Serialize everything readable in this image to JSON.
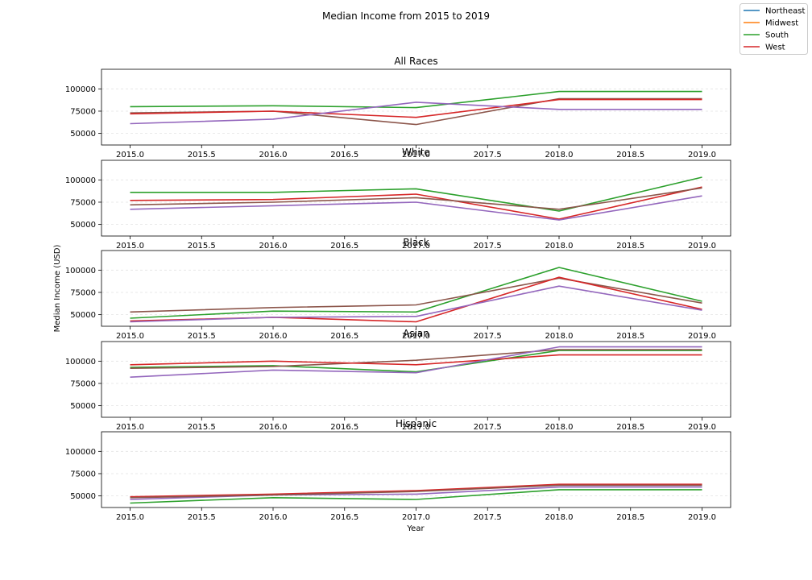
{
  "figure": {
    "suptitle": "Median Income from 2015 to 2019",
    "xlabel": "Year",
    "ylabel": "Median Income (USD)"
  },
  "legend": {
    "placement": "top-right",
    "items": [
      {
        "label": "Northeast",
        "color": "#1f77b4"
      },
      {
        "label": "Midwest",
        "color": "#ff7f0e"
      },
      {
        "label": "South",
        "color": "#2ca02c"
      },
      {
        "label": "West",
        "color": "#d62728"
      }
    ]
  },
  "chart_data": [
    {
      "type": "line",
      "title": "All Races",
      "x": [
        2015,
        2016,
        2017,
        2018,
        2019
      ],
      "xlim": [
        2014.8,
        2019.2
      ],
      "xticks": [
        "2015.0",
        "2015.5",
        "2016.0",
        "2016.5",
        "2017.0",
        "2017.5",
        "2018.0",
        "2018.5",
        "2019.0"
      ],
      "ylim": [
        37000,
        122000
      ],
      "yticks": [
        "50000",
        "75000",
        "100000"
      ],
      "grid": "y-dashed",
      "series": [
        {
          "color": "#2ca02c",
          "values": [
            80000,
            81000,
            79000,
            97000,
            97000
          ]
        },
        {
          "color": "#8c564b",
          "values": [
            73000,
            75000,
            60000,
            89000,
            89000
          ]
        },
        {
          "color": "#d62728",
          "values": [
            72000,
            75000,
            68000,
            88000,
            88000
          ]
        },
        {
          "color": "#9467bd",
          "values": [
            61000,
            66000,
            85000,
            77000,
            77000
          ]
        }
      ]
    },
    {
      "type": "line",
      "title": "White",
      "x": [
        2015,
        2016,
        2017,
        2018,
        2019
      ],
      "xlim": [
        2014.8,
        2019.2
      ],
      "xticks": [
        "2015.0",
        "2015.5",
        "2016.0",
        "2016.5",
        "2017.0",
        "2017.5",
        "2018.0",
        "2018.5",
        "2019.0"
      ],
      "ylim": [
        37000,
        122000
      ],
      "yticks": [
        "50000",
        "75000",
        "100000"
      ],
      "grid": "y-dashed",
      "series": [
        {
          "color": "#2ca02c",
          "values": [
            86000,
            86000,
            90000,
            65000,
            103000
          ]
        },
        {
          "color": "#d62728",
          "values": [
            77000,
            78000,
            84000,
            56000,
            92000
          ]
        },
        {
          "color": "#8c564b",
          "values": [
            72000,
            75000,
            80000,
            67000,
            91000
          ]
        },
        {
          "color": "#9467bd",
          "values": [
            67000,
            71000,
            75000,
            55000,
            82000
          ]
        }
      ]
    },
    {
      "type": "line",
      "title": "Black",
      "x": [
        2015,
        2016,
        2017,
        2018,
        2019
      ],
      "xlim": [
        2014.8,
        2019.2
      ],
      "xticks": [
        "2015.0",
        "2015.5",
        "2016.0",
        "2016.5",
        "2017.0",
        "2017.5",
        "2018.0",
        "2018.5",
        "2019.0"
      ],
      "ylim": [
        37000,
        122000
      ],
      "yticks": [
        "50000",
        "75000",
        "100000"
      ],
      "grid": "y-dashed",
      "series": [
        {
          "color": "#2ca02c",
          "values": [
            46000,
            54000,
            53000,
            103000,
            65000
          ]
        },
        {
          "color": "#8c564b",
          "values": [
            53000,
            58000,
            61000,
            91000,
            63000
          ]
        },
        {
          "color": "#d62728",
          "values": [
            43000,
            47000,
            42000,
            92000,
            56000
          ]
        },
        {
          "color": "#9467bd",
          "values": [
            42000,
            47000,
            48000,
            82000,
            55000
          ]
        }
      ]
    },
    {
      "type": "line",
      "title": "Asian",
      "x": [
        2015,
        2016,
        2017,
        2018,
        2019
      ],
      "xlim": [
        2014.8,
        2019.2
      ],
      "xticks": [
        "2015.0",
        "2015.5",
        "2016.0",
        "2016.5",
        "2017.0",
        "2017.5",
        "2018.0",
        "2018.5",
        "2019.0"
      ],
      "ylim": [
        37000,
        122000
      ],
      "yticks": [
        "50000",
        "75000",
        "100000"
      ],
      "grid": "y-dashed",
      "series": [
        {
          "color": "#2ca02c",
          "values": [
            93000,
            95000,
            88000,
            112000,
            112000
          ]
        },
        {
          "color": "#8c564b",
          "values": [
            92000,
            94000,
            101000,
            113000,
            113000
          ]
        },
        {
          "color": "#d62728",
          "values": [
            96000,
            100000,
            96000,
            107000,
            107000
          ]
        },
        {
          "color": "#9467bd",
          "values": [
            82000,
            90000,
            87000,
            116000,
            116000
          ]
        }
      ]
    },
    {
      "type": "line",
      "title": "Hispanic",
      "x": [
        2015,
        2016,
        2017,
        2018,
        2019
      ],
      "xlim": [
        2014.8,
        2019.2
      ],
      "xticks": [
        "2015.0",
        "2015.5",
        "2016.0",
        "2016.5",
        "2017.0",
        "2017.5",
        "2018.0",
        "2018.5",
        "2019.0"
      ],
      "ylim": [
        37000,
        122000
      ],
      "yticks": [
        "50000",
        "75000",
        "100000"
      ],
      "grid": "y-dashed",
      "series": [
        {
          "color": "#2ca02c",
          "values": [
            42000,
            48000,
            46000,
            57000,
            57000
          ]
        },
        {
          "color": "#9467bd",
          "values": [
            46000,
            51000,
            52000,
            60000,
            60000
          ]
        },
        {
          "color": "#d62728",
          "values": [
            49000,
            52000,
            56000,
            63000,
            63000
          ]
        },
        {
          "color": "#8c564b",
          "values": [
            48000,
            51000,
            55000,
            62000,
            62000
          ]
        }
      ]
    }
  ]
}
